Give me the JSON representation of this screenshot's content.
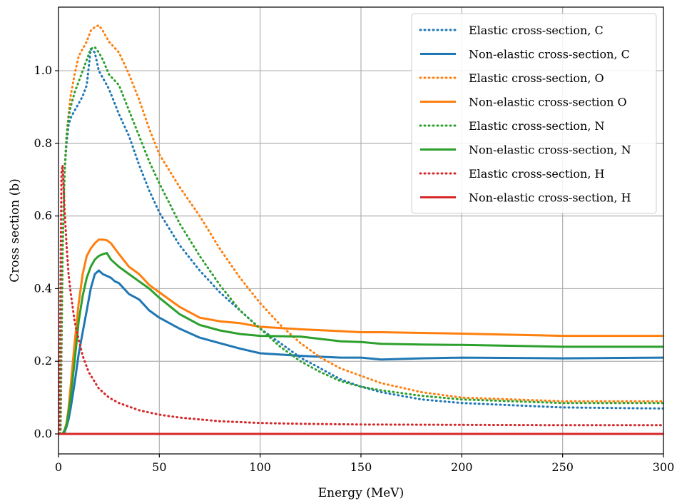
{
  "chart_data": {
    "type": "line",
    "xlabel": "Energy (MeV)",
    "ylabel": "Cross section (b)",
    "xlim": [
      0,
      300
    ],
    "ylim": [
      -0.055,
      1.175
    ],
    "xticks": [
      0,
      50,
      100,
      150,
      200,
      250,
      300
    ],
    "yticks": [
      0.0,
      0.2,
      0.4,
      0.6,
      0.8,
      1.0
    ],
    "xtick_labels": [
      "0",
      "50",
      "100",
      "150",
      "200",
      "250",
      "300"
    ],
    "ytick_labels": [
      "0.0",
      "0.2",
      "0.4",
      "0.6",
      "0.8",
      "1.0"
    ],
    "grid": true,
    "legend_position": "top-right",
    "series": [
      {
        "name": "Elastic cross-section, C",
        "color": "#1f77b4",
        "style": "dotted",
        "x": [
          1,
          2,
          3,
          4,
          5,
          6,
          8,
          10,
          12,
          14,
          16,
          18,
          20,
          22,
          25,
          30,
          35,
          40,
          45,
          50,
          60,
          70,
          80,
          90,
          100,
          110,
          120,
          130,
          140,
          150,
          160,
          180,
          200,
          250,
          300
        ],
        "y": [
          0.0,
          0.5,
          0.72,
          0.8,
          0.85,
          0.87,
          0.89,
          0.91,
          0.93,
          0.96,
          1.06,
          1.05,
          1.0,
          0.98,
          0.95,
          0.88,
          0.82,
          0.74,
          0.67,
          0.61,
          0.52,
          0.45,
          0.39,
          0.34,
          0.29,
          0.25,
          0.21,
          0.18,
          0.15,
          0.13,
          0.115,
          0.095,
          0.085,
          0.073,
          0.07
        ]
      },
      {
        "name": "Non-elastic cross-section, C",
        "color": "#1f77b4",
        "style": "solid",
        "x": [
          2,
          3,
          4,
          5,
          6,
          8,
          10,
          12,
          14,
          16,
          18,
          20,
          22,
          24,
          26,
          28,
          30,
          35,
          40,
          45,
          50,
          60,
          70,
          80,
          90,
          100,
          120,
          140,
          150,
          160,
          180,
          200,
          250,
          300
        ],
        "y": [
          0.0,
          0.005,
          0.02,
          0.04,
          0.07,
          0.14,
          0.22,
          0.28,
          0.34,
          0.4,
          0.44,
          0.45,
          0.44,
          0.435,
          0.43,
          0.42,
          0.415,
          0.385,
          0.37,
          0.34,
          0.32,
          0.29,
          0.265,
          0.25,
          0.235,
          0.222,
          0.215,
          0.21,
          0.21,
          0.205,
          0.208,
          0.21,
          0.208,
          0.21
        ]
      },
      {
        "name": "Elastic cross-section, O",
        "color": "#ff7f0e",
        "style": "dotted",
        "x": [
          1,
          2,
          3,
          4,
          5,
          6,
          8,
          10,
          12,
          14,
          16,
          18,
          20,
          22,
          25,
          30,
          35,
          40,
          45,
          50,
          60,
          70,
          80,
          90,
          100,
          110,
          120,
          130,
          140,
          150,
          160,
          180,
          200,
          250,
          300
        ],
        "y": [
          0.0,
          0.5,
          0.72,
          0.82,
          0.88,
          0.93,
          0.99,
          1.04,
          1.06,
          1.08,
          1.11,
          1.12,
          1.125,
          1.11,
          1.08,
          1.05,
          0.99,
          0.92,
          0.84,
          0.77,
          0.68,
          0.6,
          0.51,
          0.43,
          0.36,
          0.3,
          0.25,
          0.21,
          0.18,
          0.16,
          0.14,
          0.115,
          0.1,
          0.09,
          0.09
        ]
      },
      {
        "name": "Non-elastic cross-section O",
        "color": "#ff7f0e",
        "style": "solid",
        "x": [
          2,
          3,
          4,
          5,
          6,
          8,
          10,
          12,
          14,
          16,
          18,
          20,
          22,
          24,
          26,
          28,
          30,
          35,
          40,
          45,
          50,
          60,
          70,
          80,
          90,
          100,
          120,
          140,
          150,
          160,
          180,
          200,
          250,
          300
        ],
        "y": [
          0.0,
          0.01,
          0.03,
          0.07,
          0.13,
          0.25,
          0.36,
          0.44,
          0.49,
          0.51,
          0.525,
          0.535,
          0.535,
          0.533,
          0.525,
          0.51,
          0.495,
          0.46,
          0.44,
          0.41,
          0.39,
          0.35,
          0.32,
          0.31,
          0.305,
          0.295,
          0.288,
          0.283,
          0.28,
          0.28,
          0.278,
          0.276,
          0.27,
          0.27
        ]
      },
      {
        "name": "Elastic cross-section, N",
        "color": "#2ca02c",
        "style": "dotted",
        "x": [
          1,
          2,
          3,
          4,
          5,
          6,
          8,
          10,
          12,
          14,
          16,
          18,
          20,
          22,
          25,
          30,
          35,
          40,
          45,
          50,
          60,
          70,
          80,
          90,
          100,
          110,
          120,
          130,
          140,
          150,
          160,
          180,
          200,
          250,
          300
        ],
        "y": [
          0.0,
          0.5,
          0.72,
          0.82,
          0.87,
          0.9,
          0.94,
          0.97,
          1.0,
          1.03,
          1.06,
          1.065,
          1.05,
          1.03,
          0.99,
          0.96,
          0.89,
          0.82,
          0.75,
          0.69,
          0.58,
          0.49,
          0.41,
          0.34,
          0.29,
          0.24,
          0.2,
          0.17,
          0.145,
          0.13,
          0.12,
          0.105,
          0.095,
          0.085,
          0.085
        ]
      },
      {
        "name": "Non-elastic cross-section, N",
        "color": "#2ca02c",
        "style": "solid",
        "x": [
          2,
          3,
          4,
          5,
          6,
          8,
          10,
          12,
          14,
          16,
          18,
          20,
          22,
          24,
          26,
          28,
          30,
          35,
          40,
          45,
          50,
          60,
          70,
          80,
          90,
          100,
          120,
          140,
          150,
          160,
          180,
          200,
          250,
          300
        ],
        "y": [
          0.0,
          0.01,
          0.025,
          0.06,
          0.1,
          0.2,
          0.31,
          0.38,
          0.43,
          0.46,
          0.48,
          0.49,
          0.495,
          0.498,
          0.48,
          0.47,
          0.46,
          0.44,
          0.42,
          0.4,
          0.375,
          0.33,
          0.3,
          0.285,
          0.275,
          0.27,
          0.268,
          0.255,
          0.253,
          0.248,
          0.246,
          0.245,
          0.24,
          0.24
        ]
      },
      {
        "name": "Elastic cross-section, H",
        "color": "#d62728",
        "style": "dotted",
        "x": [
          0.5,
          1,
          1.5,
          2,
          3,
          4,
          5,
          6,
          8,
          10,
          12,
          15,
          20,
          25,
          30,
          40,
          50,
          60,
          70,
          80,
          100,
          120,
          150,
          200,
          250,
          300
        ],
        "y": [
          0.0,
          0.4,
          0.72,
          0.74,
          0.62,
          0.52,
          0.44,
          0.39,
          0.31,
          0.26,
          0.215,
          0.17,
          0.125,
          0.1,
          0.085,
          0.065,
          0.053,
          0.045,
          0.04,
          0.035,
          0.03,
          0.028,
          0.026,
          0.025,
          0.024,
          0.024
        ]
      },
      {
        "name": "Non-elastic cross-section, H",
        "color": "#d62728",
        "style": "solid",
        "x": [
          0,
          300
        ],
        "y": [
          0.0,
          0.0
        ]
      }
    ]
  }
}
